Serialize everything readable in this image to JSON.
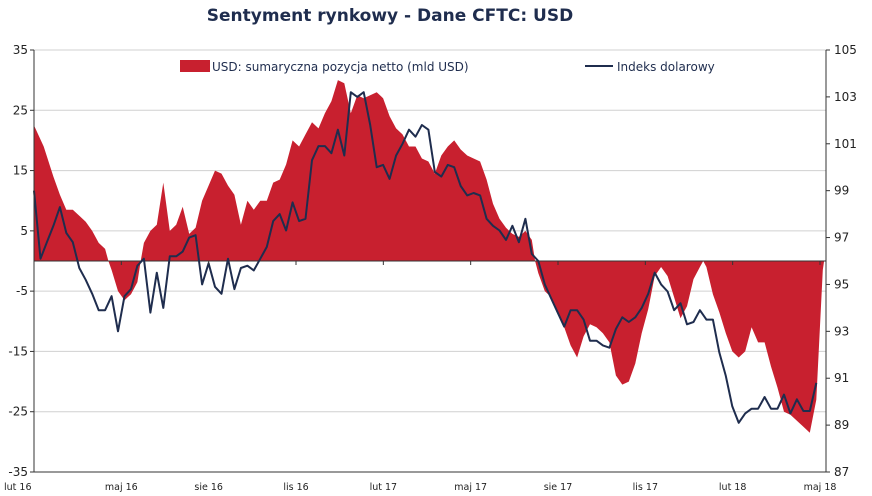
{
  "chart_data": {
    "type": "area",
    "title": "Sentyment rynkowy - Dane CFTC:  USD",
    "y_left": {
      "ylim": [
        -35,
        35
      ],
      "ticks": [
        35,
        25,
        15,
        5,
        -5,
        -15,
        -25,
        -35
      ]
    },
    "y_right": {
      "ylim": [
        87,
        105
      ],
      "ticks": [
        105,
        103,
        101,
        99,
        97,
        95,
        93,
        91,
        89,
        87
      ]
    },
    "x_labels": [
      "lut 16",
      "maj 16",
      "sie 16",
      "lis 16",
      "lut 17",
      "maj 17",
      "sie 17",
      "lis 17",
      "lut 18",
      "maj 18"
    ],
    "grid": true,
    "legend_position": "top",
    "series": [
      {
        "name": "USD: sumaryczna pozycja netto (mld USD)",
        "type": "area",
        "axis": "left",
        "color": "#c8202f",
        "points": [
          [
            0,
            22.5
          ],
          [
            1.5,
            19
          ],
          [
            3,
            14
          ],
          [
            4,
            11
          ],
          [
            5,
            8.5
          ],
          [
            6,
            8.5
          ],
          [
            7,
            7.5
          ],
          [
            8,
            6.5
          ],
          [
            9,
            5
          ],
          [
            10,
            3
          ],
          [
            11,
            2
          ],
          [
            11.5,
            0
          ],
          [
            12,
            -1.5
          ],
          [
            13,
            -5
          ],
          [
            14,
            -6.5
          ],
          [
            15,
            -5.5
          ],
          [
            16,
            -3.5
          ],
          [
            16.5,
            0
          ],
          [
            17,
            3
          ],
          [
            18,
            5
          ],
          [
            19,
            6
          ],
          [
            20,
            13
          ],
          [
            21,
            5
          ],
          [
            22,
            6
          ],
          [
            23,
            9
          ],
          [
            24,
            4.5
          ],
          [
            25,
            5.5
          ],
          [
            26,
            10
          ],
          [
            27,
            12.5
          ],
          [
            28,
            15
          ],
          [
            29,
            14.5
          ],
          [
            30,
            12.5
          ],
          [
            31,
            11
          ],
          [
            32,
            6
          ],
          [
            33,
            10
          ],
          [
            34,
            8.5
          ],
          [
            35,
            10
          ],
          [
            36,
            10
          ],
          [
            37,
            13
          ],
          [
            38,
            13.5
          ],
          [
            39,
            16
          ],
          [
            40,
            20
          ],
          [
            41,
            19
          ],
          [
            42,
            21
          ],
          [
            43,
            23
          ],
          [
            44,
            22
          ],
          [
            45,
            24.5
          ],
          [
            46,
            26.5
          ],
          [
            47,
            30
          ],
          [
            48,
            29.5
          ],
          [
            49,
            24.5
          ],
          [
            50,
            27.5
          ],
          [
            51,
            27
          ],
          [
            52,
            27.5
          ],
          [
            53,
            28
          ],
          [
            54,
            27
          ],
          [
            55,
            24
          ],
          [
            56,
            22
          ],
          [
            57,
            21
          ],
          [
            58,
            19
          ],
          [
            59,
            19
          ],
          [
            60,
            17
          ],
          [
            61,
            16.5
          ],
          [
            62,
            14.5
          ],
          [
            63,
            17.5
          ],
          [
            64,
            19
          ],
          [
            65,
            20
          ],
          [
            66,
            18.5
          ],
          [
            67,
            17.5
          ],
          [
            68,
            17
          ],
          [
            69,
            16.5
          ],
          [
            70,
            13.5
          ],
          [
            71,
            9.5
          ],
          [
            72,
            7
          ],
          [
            73,
            5.5
          ],
          [
            74,
            4.5
          ],
          [
            75,
            4
          ],
          [
            76,
            5
          ],
          [
            77,
            3.5
          ],
          [
            77.5,
            0
          ],
          [
            78,
            -2
          ],
          [
            79,
            -5
          ],
          [
            80,
            -6
          ],
          [
            81,
            -8.5
          ],
          [
            82,
            -11
          ],
          [
            83,
            -14
          ],
          [
            84,
            -16
          ],
          [
            85,
            -12.5
          ],
          [
            86,
            -10.5
          ],
          [
            87,
            -11
          ],
          [
            88,
            -12
          ],
          [
            89,
            -13.5
          ],
          [
            90,
            -19
          ],
          [
            91,
            -20.5
          ],
          [
            92,
            -20
          ],
          [
            93,
            -17
          ],
          [
            94,
            -12
          ],
          [
            95,
            -8
          ],
          [
            96,
            -2.5
          ],
          [
            97,
            -1
          ],
          [
            98,
            -2.5
          ],
          [
            99,
            -6
          ],
          [
            100,
            -9.5
          ],
          [
            101,
            -7.5
          ],
          [
            102,
            -3
          ],
          [
            103,
            -1
          ],
          [
            103.5,
            0
          ],
          [
            104,
            -1
          ],
          [
            105,
            -5.5
          ],
          [
            106,
            -8.5
          ],
          [
            107,
            -12
          ],
          [
            108,
            -15
          ],
          [
            109,
            -16
          ],
          [
            110,
            -15
          ],
          [
            111,
            -11
          ],
          [
            112,
            -13.5
          ],
          [
            113,
            -13.5
          ],
          [
            114,
            -17.5
          ],
          [
            115,
            -21
          ],
          [
            116,
            -25
          ],
          [
            117,
            -25.5
          ],
          [
            118,
            -26.5
          ],
          [
            119,
            -27.5
          ],
          [
            120,
            -28.5
          ],
          [
            121,
            -23
          ],
          [
            122,
            -1.5
          ],
          [
            122.2,
            0
          ]
        ]
      },
      {
        "name": "Indeks dolarowy",
        "type": "line",
        "axis": "right",
        "color": "#1f2d4e",
        "points": [
          [
            0,
            99
          ],
          [
            1,
            96.1
          ],
          [
            2,
            96.8
          ],
          [
            3,
            97.5
          ],
          [
            4,
            98.3
          ],
          [
            5,
            97.2
          ],
          [
            6,
            96.8
          ],
          [
            7,
            95.7
          ],
          [
            8,
            95.2
          ],
          [
            9,
            94.6
          ],
          [
            10,
            93.9
          ],
          [
            11,
            93.9
          ],
          [
            12,
            94.5
          ],
          [
            13,
            93
          ],
          [
            14,
            94.5
          ],
          [
            15,
            94.8
          ],
          [
            16,
            95.8
          ],
          [
            17,
            96.1
          ],
          [
            18,
            93.8
          ],
          [
            19,
            95.5
          ],
          [
            20,
            94
          ],
          [
            21,
            96.2
          ],
          [
            22,
            96.2
          ],
          [
            23,
            96.4
          ],
          [
            24,
            97
          ],
          [
            25,
            97.1
          ],
          [
            26,
            95
          ],
          [
            27,
            95.9
          ],
          [
            28,
            94.9
          ],
          [
            29,
            94.6
          ],
          [
            30,
            96.1
          ],
          [
            31,
            94.8
          ],
          [
            32,
            95.7
          ],
          [
            33,
            95.8
          ],
          [
            34,
            95.6
          ],
          [
            35,
            96.1
          ],
          [
            36,
            96.6
          ],
          [
            37,
            97.7
          ],
          [
            38,
            98
          ],
          [
            39,
            97.3
          ],
          [
            40,
            98.5
          ],
          [
            41,
            97.7
          ],
          [
            42,
            97.8
          ],
          [
            43,
            100.3
          ],
          [
            44,
            100.9
          ],
          [
            45,
            100.9
          ],
          [
            46,
            100.6
          ],
          [
            47,
            101.6
          ],
          [
            48,
            100.5
          ],
          [
            49,
            103.2
          ],
          [
            50,
            103
          ],
          [
            51,
            103.2
          ],
          [
            52,
            101.8
          ],
          [
            53,
            100
          ],
          [
            54,
            100.1
          ],
          [
            55,
            99.5
          ],
          [
            56,
            100.5
          ],
          [
            57,
            101
          ],
          [
            58,
            101.6
          ],
          [
            59,
            101.3
          ],
          [
            60,
            101.8
          ],
          [
            61,
            101.6
          ],
          [
            62,
            99.8
          ],
          [
            63,
            99.6
          ],
          [
            64,
            100.1
          ],
          [
            65,
            100
          ],
          [
            66,
            99.2
          ],
          [
            67,
            98.8
          ],
          [
            68,
            98.9
          ],
          [
            69,
            98.8
          ],
          [
            70,
            97.8
          ],
          [
            71,
            97.5
          ],
          [
            72,
            97.3
          ],
          [
            73,
            96.9
          ],
          [
            74,
            97.5
          ],
          [
            75,
            96.8
          ],
          [
            76,
            97.8
          ],
          [
            77,
            96.3
          ],
          [
            78,
            96
          ],
          [
            79,
            95
          ],
          [
            80,
            94.4
          ],
          [
            81,
            93.8
          ],
          [
            82,
            93.2
          ],
          [
            83,
            93.9
          ],
          [
            84,
            93.9
          ],
          [
            85,
            93.5
          ],
          [
            86,
            92.6
          ],
          [
            87,
            92.6
          ],
          [
            88,
            92.4
          ],
          [
            89,
            92.3
          ],
          [
            90,
            93.1
          ],
          [
            91,
            93.6
          ],
          [
            92,
            93.4
          ],
          [
            93,
            93.6
          ],
          [
            94,
            94
          ],
          [
            95,
            94.6
          ],
          [
            96,
            95.5
          ],
          [
            97,
            95
          ],
          [
            98,
            94.7
          ],
          [
            99,
            93.9
          ],
          [
            100,
            94.2
          ],
          [
            101,
            93.3
          ],
          [
            102,
            93.4
          ],
          [
            103,
            93.9
          ],
          [
            104,
            93.5
          ],
          [
            105,
            93.5
          ],
          [
            106,
            92.1
          ],
          [
            107,
            91.1
          ],
          [
            108,
            89.8
          ],
          [
            109,
            89.1
          ],
          [
            110,
            89.5
          ],
          [
            111,
            89.7
          ],
          [
            112,
            89.7
          ],
          [
            113,
            90.2
          ],
          [
            114,
            89.7
          ],
          [
            115,
            89.7
          ],
          [
            116,
            90.3
          ],
          [
            117,
            89.5
          ],
          [
            118,
            90.1
          ],
          [
            119,
            89.6
          ],
          [
            120,
            89.6
          ],
          [
            121,
            90.8
          ]
        ]
      }
    ]
  }
}
